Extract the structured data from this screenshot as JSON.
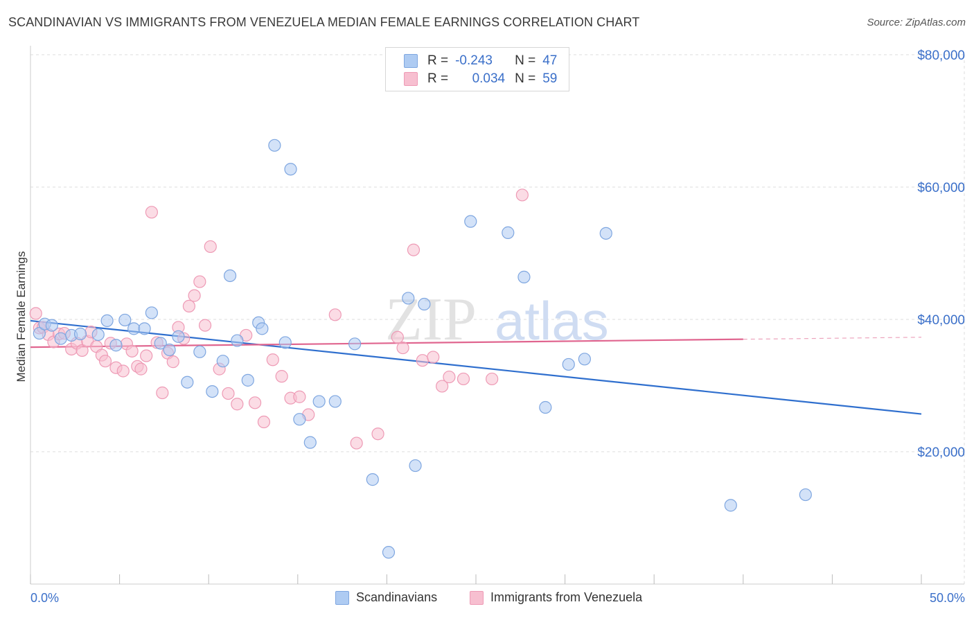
{
  "title": "SCANDINAVIAN VS IMMIGRANTS FROM VENEZUELA MEDIAN FEMALE EARNINGS CORRELATION CHART",
  "source": "Source: ZipAtlas.com",
  "watermark": {
    "zip": "ZIP",
    "atlas": "atlas"
  },
  "legend_top": [
    {
      "r_label": "R =",
      "r_value": "-0.243",
      "n_label": "N =",
      "n_value": "47"
    },
    {
      "r_label": "R =",
      "r_value": "0.034",
      "n_label": "N =",
      "n_value": "59"
    }
  ],
  "legend_bottom": [
    "Scandinavians",
    "Immigrants from Venezuela"
  ],
  "chart_data": {
    "type": "scatter",
    "title": "SCANDINAVIAN VS IMMIGRANTS FROM VENEZUELA MEDIAN FEMALE EARNINGS CORRELATION CHART",
    "xlabel": "",
    "ylabel": "Median Female Earnings",
    "xlim": [
      0,
      50
    ],
    "ylim": [
      0,
      80000
    ],
    "x_tick_labels": [
      "0.0%",
      "50.0%"
    ],
    "y_ticks": [
      20000,
      40000,
      60000,
      80000
    ],
    "y_tick_labels": [
      "$20,000",
      "$40,000",
      "$60,000",
      "$80,000"
    ],
    "colors": {
      "scandinavians_fill": "#aecbf2",
      "scandinavians_stroke": "#7ea6e0",
      "scandinavians_line": "#2f6fce",
      "venezuela_fill": "#f7bfd0",
      "venezuela_stroke": "#ee9ab5",
      "venezuela_line": "#e0658f",
      "axis_text": "#3a6fc9",
      "grid": "#dddddd"
    },
    "series": [
      {
        "name": "Scandinavians",
        "x": [
          0.5,
          0.8,
          1.2,
          1.7,
          2.3,
          2.8,
          3.8,
          4.3,
          4.8,
          5.3,
          5.8,
          6.4,
          6.8,
          7.3,
          7.8,
          8.3,
          8.8,
          9.5,
          10.2,
          10.8,
          11.2,
          11.6,
          12.2,
          12.8,
          13.0,
          13.7,
          14.3,
          14.6,
          15.1,
          15.7,
          16.2,
          17.1,
          18.2,
          19.2,
          20.1,
          21.2,
          21.6,
          22.1,
          24.7,
          26.8,
          27.7,
          28.9,
          30.2,
          31.1,
          32.3,
          39.3,
          43.5
        ],
        "y": [
          37900,
          39300,
          39100,
          37100,
          37600,
          37800,
          37700,
          39800,
          36100,
          39900,
          38600,
          38600,
          41000,
          36400,
          35400,
          37400,
          30500,
          35100,
          29100,
          33700,
          46600,
          36800,
          30800,
          39500,
          38600,
          66300,
          36500,
          62700,
          24900,
          21400,
          27600,
          27600,
          36300,
          15800,
          4800,
          43200,
          17900,
          42300,
          54800,
          53100,
          46400,
          26700,
          33200,
          34000,
          53000,
          11900,
          13500
        ]
      },
      {
        "name": "Immigrants from Venezuela",
        "x": [
          0.3,
          0.5,
          0.7,
          1.0,
          1.3,
          1.6,
          1.9,
          2.3,
          2.6,
          2.9,
          3.2,
          3.4,
          3.7,
          4.0,
          4.2,
          4.5,
          4.8,
          5.2,
          5.4,
          5.7,
          6.0,
          6.2,
          6.5,
          6.8,
          7.1,
          7.4,
          7.7,
          8.0,
          8.3,
          8.6,
          8.9,
          9.2,
          9.5,
          9.8,
          10.1,
          10.6,
          11.1,
          11.6,
          12.1,
          12.6,
          13.1,
          13.6,
          14.1,
          14.6,
          15.1,
          15.6,
          17.1,
          18.3,
          19.5,
          20.6,
          20.9,
          21.5,
          22.0,
          22.6,
          23.1,
          23.5,
          24.3,
          25.9,
          27.6
        ],
        "y": [
          40900,
          38700,
          38800,
          37700,
          36600,
          37800,
          37900,
          35500,
          36400,
          35300,
          36700,
          38100,
          35900,
          34600,
          33700,
          36400,
          32700,
          32200,
          36300,
          35200,
          32900,
          32500,
          34500,
          56200,
          36500,
          28900,
          34900,
          33600,
          38800,
          37100,
          42000,
          43600,
          45700,
          39100,
          51000,
          32500,
          28800,
          27200,
          37600,
          27400,
          24500,
          33900,
          31400,
          28100,
          28300,
          25600,
          40700,
          21300,
          22700,
          37300,
          35700,
          50500,
          33800,
          34300,
          29900,
          31300,
          31000,
          31000,
          58800
        ]
      }
    ],
    "trend_lines": [
      {
        "series": "Scandinavians",
        "x": [
          0,
          50
        ],
        "y": [
          39800,
          25700
        ]
      },
      {
        "series": "Immigrants from Venezuela",
        "x": [
          0,
          40
        ],
        "y": [
          35800,
          37000
        ],
        "dashed_extension_x": [
          40,
          50
        ],
        "dashed_extension_y": [
          37000,
          37300
        ]
      }
    ]
  }
}
